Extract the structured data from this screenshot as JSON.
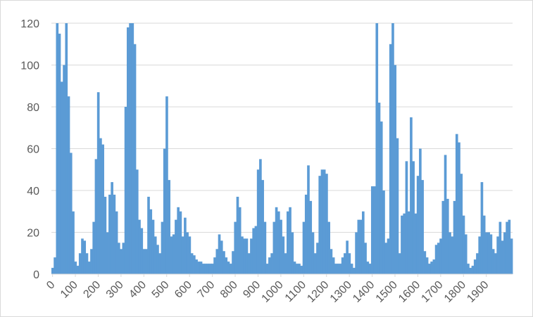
{
  "chart_data": {
    "type": "bar",
    "color": "#5b9bd5",
    "grid": true,
    "xlim": [
      -5,
      2015
    ],
    "ylim": [
      0,
      120
    ],
    "xticks": [
      0,
      100,
      200,
      300,
      400,
      500,
      600,
      700,
      800,
      900,
      1000,
      1100,
      1200,
      1300,
      1400,
      1500,
      1600,
      1700,
      1800,
      1900
    ],
    "yticks": [
      0,
      20,
      40,
      60,
      80,
      100,
      120
    ],
    "x": [
      0,
      10,
      20,
      30,
      40,
      50,
      60,
      70,
      80,
      90,
      100,
      110,
      120,
      130,
      140,
      150,
      160,
      170,
      180,
      190,
      200,
      210,
      220,
      230,
      240,
      250,
      260,
      270,
      280,
      290,
      300,
      310,
      320,
      330,
      340,
      350,
      360,
      370,
      380,
      390,
      400,
      410,
      420,
      430,
      440,
      450,
      460,
      470,
      480,
      490,
      500,
      510,
      520,
      530,
      540,
      550,
      560,
      570,
      580,
      590,
      600,
      610,
      620,
      630,
      640,
      650,
      660,
      670,
      680,
      690,
      700,
      710,
      720,
      730,
      740,
      750,
      760,
      770,
      780,
      790,
      800,
      810,
      820,
      830,
      840,
      850,
      860,
      870,
      880,
      890,
      900,
      910,
      920,
      930,
      940,
      950,
      960,
      970,
      980,
      990,
      1000,
      1010,
      1020,
      1030,
      1040,
      1050,
      1060,
      1070,
      1080,
      1090,
      1100,
      1110,
      1120,
      1130,
      1140,
      1150,
      1160,
      1170,
      1180,
      1190,
      1200,
      1210,
      1220,
      1230,
      1240,
      1250,
      1260,
      1270,
      1280,
      1290,
      1300,
      1310,
      1320,
      1330,
      1340,
      1350,
      1360,
      1370,
      1380,
      1390,
      1400,
      1410,
      1420,
      1430,
      1440,
      1450,
      1460,
      1470,
      1480,
      1490,
      1500,
      1510,
      1520,
      1530,
      1540,
      1550,
      1560,
      1570,
      1580,
      1590,
      1600,
      1610,
      1620,
      1630,
      1640,
      1650,
      1660,
      1670,
      1680,
      1690,
      1700,
      1710,
      1720,
      1730,
      1740,
      1750,
      1760,
      1770,
      1780,
      1790,
      1800,
      1810,
      1820,
      1830,
      1840,
      1850,
      1860,
      1870,
      1880,
      1890,
      1900,
      1910,
      1920,
      1930,
      1940,
      1950,
      1960,
      1970,
      1980,
      1990,
      2000,
      2010
    ],
    "values": [
      3,
      8,
      120,
      115,
      92,
      100,
      120,
      85,
      58,
      30,
      6,
      4,
      10,
      17,
      16,
      10,
      6,
      12,
      25,
      55,
      87,
      65,
      62,
      37,
      20,
      38,
      44,
      38,
      30,
      15,
      12,
      15,
      80,
      118,
      120,
      120,
      110,
      50,
      26,
      22,
      12,
      12,
      37,
      31,
      26,
      18,
      14,
      10,
      25,
      60,
      85,
      45,
      18,
      19,
      26,
      32,
      30,
      18,
      27,
      20,
      18,
      10,
      9,
      7,
      6,
      6,
      5,
      5,
      5,
      5,
      5,
      8,
      12,
      19,
      16,
      11,
      8,
      6,
      5,
      11,
      25,
      37,
      32,
      18,
      17,
      17,
      10,
      17,
      22,
      23,
      50,
      55,
      45,
      25,
      5,
      8,
      10,
      25,
      32,
      30,
      26,
      18,
      10,
      30,
      32,
      20,
      6,
      5,
      5,
      4,
      25,
      38,
      52,
      35,
      20,
      10,
      15,
      47,
      50,
      50,
      48,
      25,
      12,
      8,
      5,
      5,
      5,
      8,
      10,
      16,
      10,
      5,
      3,
      20,
      26,
      26,
      30,
      15,
      6,
      5,
      42,
      42,
      120,
      82,
      73,
      40,
      15,
      17,
      110,
      120,
      100,
      65,
      10,
      28,
      29,
      54,
      30,
      75,
      54,
      29,
      47,
      60,
      45,
      11,
      8,
      5,
      6,
      7,
      14,
      15,
      17,
      35,
      57,
      36,
      20,
      18,
      35,
      67,
      63,
      48,
      28,
      19,
      5,
      3,
      4,
      7,
      10,
      18,
      44,
      28,
      20,
      20,
      19,
      12,
      10,
      18,
      25,
      16,
      20,
      25,
      26,
      17
    ]
  }
}
